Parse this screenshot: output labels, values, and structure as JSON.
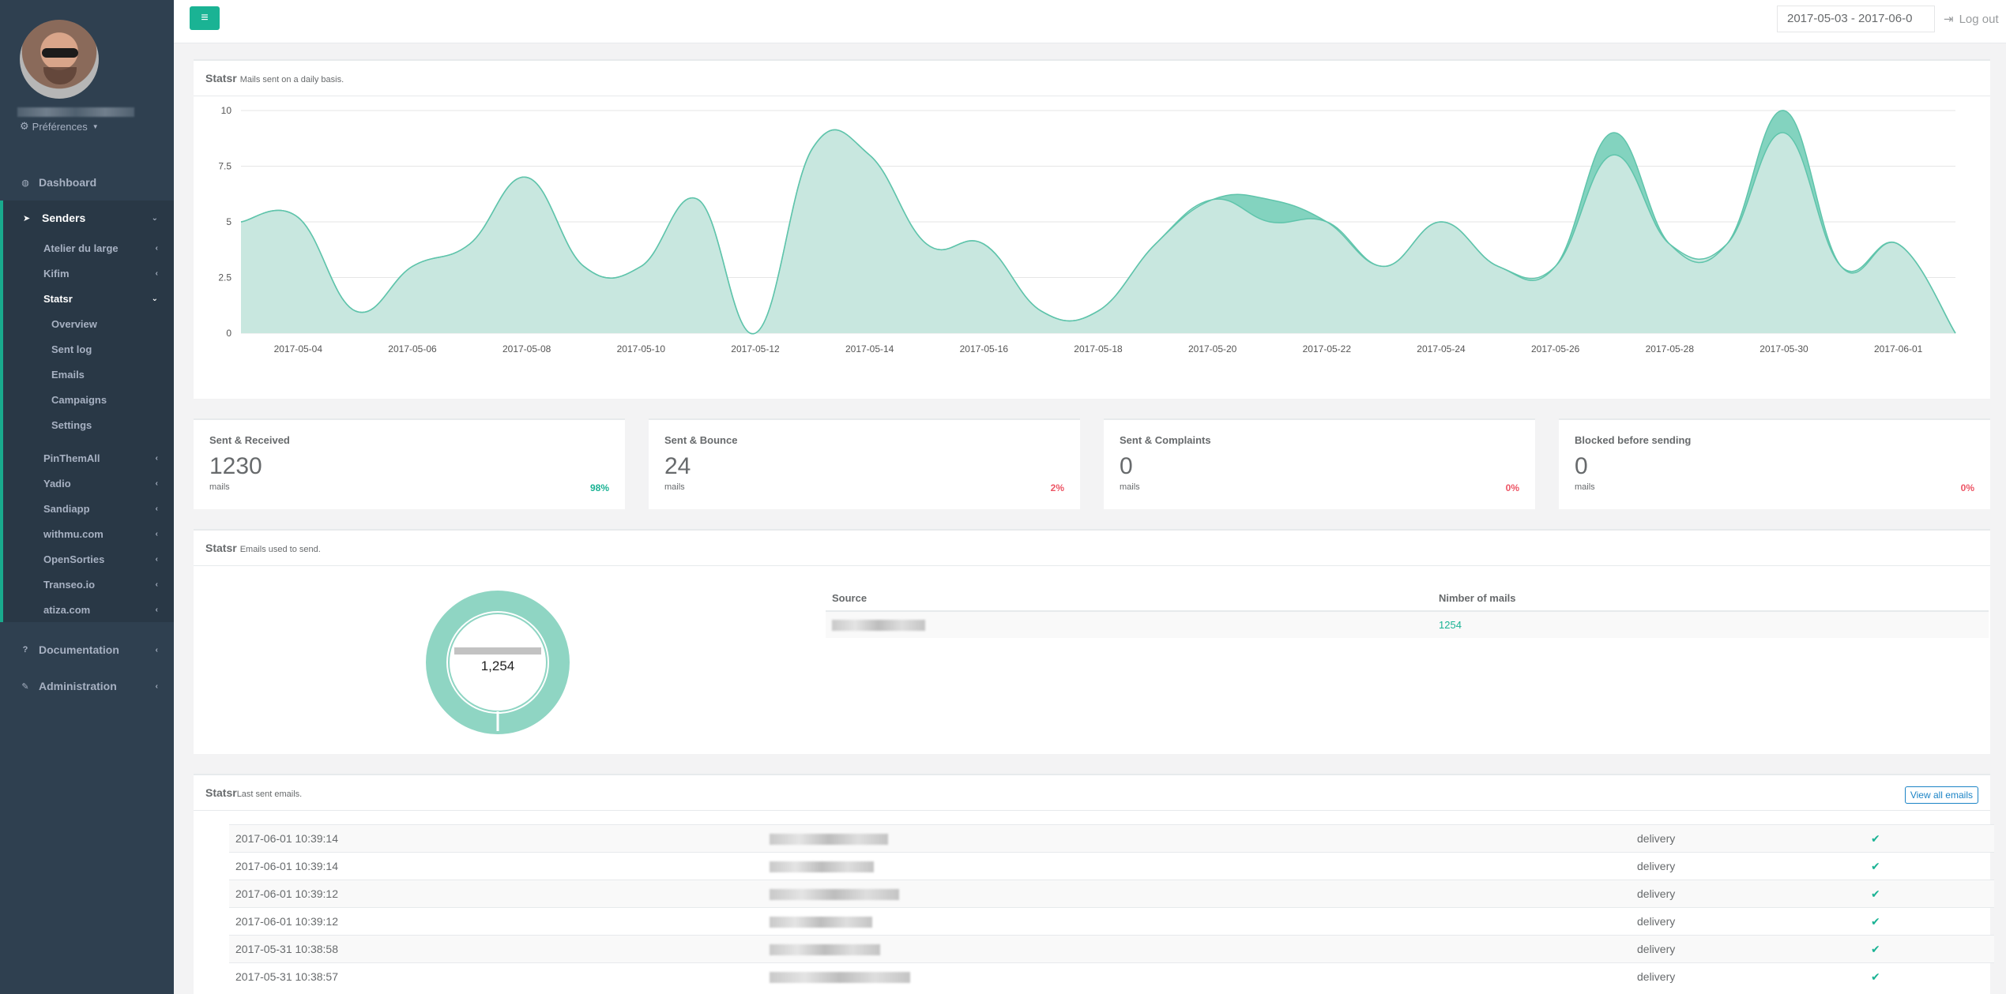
{
  "sidebar": {
    "preferences_label": "Préférences",
    "nav": {
      "dashboard": "Dashboard",
      "senders": "Senders",
      "documentation": "Documentation",
      "administration": "Administration"
    },
    "senders_items": [
      "Atelier du large",
      "Kifim",
      "Statsr",
      "PinThemAll",
      "Yadio",
      "Sandiapp",
      "withmu.com",
      "OpenSorties",
      "Transeo.io",
      "atiza.com"
    ],
    "statsr_items": [
      "Overview",
      "Sent log",
      "Emails",
      "Campaigns",
      "Settings"
    ]
  },
  "topbar": {
    "date_range": "2017-05-03 - 2017-06-0",
    "logout_label": "Log out"
  },
  "chart_panel": {
    "title": "Statsr",
    "subtitle": "Mails sent on a daily basis."
  },
  "chart_data": {
    "type": "area",
    "x": [
      "2017-05-03",
      "2017-05-04",
      "2017-05-05",
      "2017-05-06",
      "2017-05-07",
      "2017-05-08",
      "2017-05-09",
      "2017-05-10",
      "2017-05-11",
      "2017-05-12",
      "2017-05-13",
      "2017-05-14",
      "2017-05-15",
      "2017-05-16",
      "2017-05-17",
      "2017-05-18",
      "2017-05-19",
      "2017-05-20",
      "2017-05-21",
      "2017-05-22",
      "2017-05-23",
      "2017-05-24",
      "2017-05-25",
      "2017-05-26",
      "2017-05-27",
      "2017-05-28",
      "2017-05-29",
      "2017-05-30",
      "2017-05-31",
      "2017-06-01",
      "2017-06-02"
    ],
    "x_tick_labels": [
      "2017-05-04",
      "2017-05-06",
      "2017-05-08",
      "2017-05-10",
      "2017-05-12",
      "2017-05-14",
      "2017-05-16",
      "2017-05-18",
      "2017-05-20",
      "2017-05-22",
      "2017-05-24",
      "2017-05-26",
      "2017-05-28",
      "2017-05-30",
      "2017-06-01"
    ],
    "y_ticks": [
      0,
      2.5,
      5,
      7.5,
      10
    ],
    "y_tick_labels": [
      "0",
      "2.5",
      "5",
      "7.5",
      "10"
    ],
    "ylim": [
      0,
      10
    ],
    "grid": true,
    "series": [
      {
        "values": [
          5,
          5.2,
          1,
          3,
          4,
          7,
          3,
          3,
          6,
          0,
          8.3,
          8,
          4,
          4,
          1,
          1,
          4,
          6,
          6,
          5,
          3,
          5,
          3,
          3,
          9,
          4,
          4,
          10,
          3,
          4,
          0
        ],
        "color": "#6dcbb4"
      },
      {
        "values": [
          5,
          5.2,
          1,
          3,
          4,
          7,
          3,
          3,
          6,
          0,
          8.3,
          8,
          4,
          4,
          1,
          1,
          4,
          6,
          5,
          5,
          3,
          5,
          3,
          3,
          8,
          4,
          4,
          9,
          3,
          4,
          0
        ],
        "color": "#c8e7df"
      }
    ]
  },
  "stats": [
    {
      "label": "Sent & Received",
      "value": "1230",
      "unit": "mails",
      "percent": "98%",
      "percent_color": "#1ab394"
    },
    {
      "label": "Sent & Bounce",
      "value": "24",
      "unit": "mails",
      "percent": "2%",
      "percent_color": "#ed5565"
    },
    {
      "label": "Sent & Complaints",
      "value": "0",
      "unit": "mails",
      "percent": "0%",
      "percent_color": "#ed5565"
    },
    {
      "label": "Blocked before sending",
      "value": "0",
      "unit": "mails",
      "percent": "0%",
      "percent_color": "#ed5565"
    }
  ],
  "sources_panel": {
    "title": "Statsr",
    "subtitle": "Emails used to send.",
    "donut_total": "1,254",
    "table_headers": [
      "Source",
      "Nimber of mails"
    ],
    "rows": [
      {
        "count": "1254"
      }
    ]
  },
  "emails_panel": {
    "title": "Statsr",
    "subtitle": "Last sent emails.",
    "view_all_label": "View all emails",
    "rows": [
      {
        "date": "2017-06-01 10:39:14",
        "status": "delivery"
      },
      {
        "date": "2017-06-01 10:39:14",
        "status": "delivery"
      },
      {
        "date": "2017-06-01 10:39:12",
        "status": "delivery"
      },
      {
        "date": "2017-06-01 10:39:12",
        "status": "delivery"
      },
      {
        "date": "2017-05-31 10:38:58",
        "status": "delivery"
      },
      {
        "date": "2017-05-31 10:38:57",
        "status": "delivery"
      }
    ]
  }
}
